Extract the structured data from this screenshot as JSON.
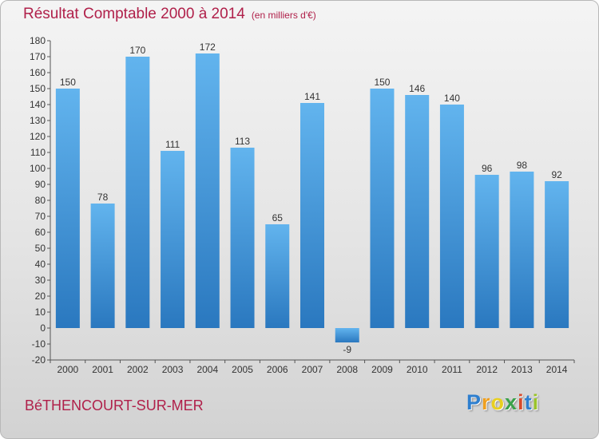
{
  "header": {
    "title": "Résultat Comptable 2000 à 2014",
    "subtitle": "(en milliers d'€)"
  },
  "footer": {
    "commune": "BéTHENCOURT-SUR-MER",
    "brand": "Proxiti"
  },
  "colors": {
    "bar_light": "#62b4ee",
    "bar_dark": "#2a78bf",
    "title": "#b0204a"
  },
  "chart_data": {
    "type": "bar",
    "categories": [
      "2000",
      "2001",
      "2002",
      "2003",
      "2004",
      "2005",
      "2006",
      "2007",
      "2008",
      "2009",
      "2010",
      "2011",
      "2012",
      "2013",
      "2014"
    ],
    "values": [
      150,
      78,
      170,
      111,
      172,
      113,
      65,
      141,
      -9,
      150,
      146,
      140,
      96,
      98,
      92
    ],
    "title": "Résultat Comptable 2000 à 2014",
    "subtitle": "(en milliers d'€)",
    "xlabel": "",
    "ylabel": "",
    "ylim": [
      -20,
      180
    ],
    "yticks": [
      -20,
      -10,
      0,
      10,
      20,
      30,
      40,
      50,
      60,
      70,
      80,
      90,
      100,
      110,
      120,
      130,
      140,
      150,
      160,
      170,
      180
    ],
    "grid": false,
    "legend": "none"
  }
}
